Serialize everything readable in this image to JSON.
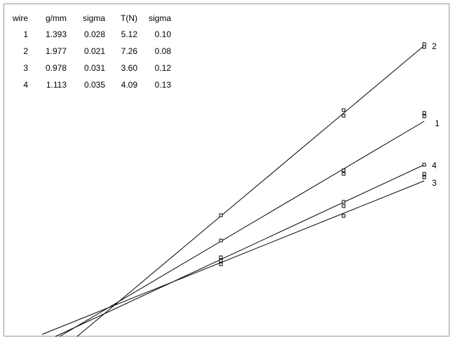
{
  "table": {
    "header": [
      "wire",
      "g/mm",
      "sigma",
      "T(N)",
      "sigma"
    ],
    "rows": [
      [
        "1",
        "1.393",
        "0.028",
        "5.12",
        "0.10"
      ],
      [
        "2",
        "1.977",
        "0.021",
        "7.26",
        "0.08"
      ],
      [
        "3",
        "0.978",
        "0.031",
        "3.60",
        "0.12"
      ],
      [
        "4",
        "1.113",
        "0.035",
        "4.09",
        "0.13"
      ]
    ]
  },
  "curve_labels": [
    "1",
    "2",
    "3",
    "4"
  ]
}
